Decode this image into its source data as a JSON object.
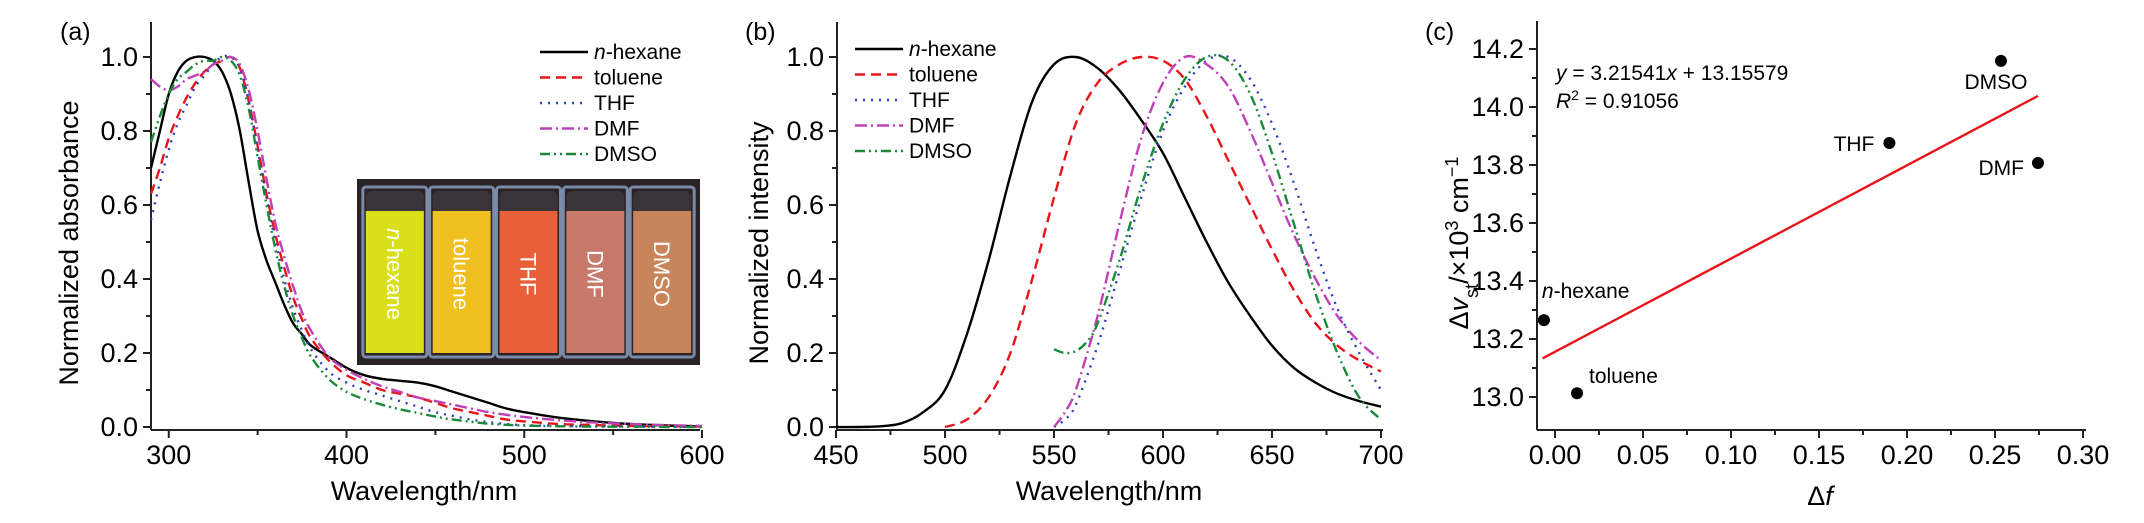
{
  "figure": {
    "series_styles": {
      "n-hexane": {
        "color": "#000000",
        "dash": "solid"
      },
      "toluene": {
        "color": "#e8141b",
        "dash": "dashed"
      },
      "THF": {
        "color": "#2a3fbf",
        "dash": "dotted"
      },
      "DMF": {
        "color": "#c040b8",
        "dash": "dash-dot"
      },
      "DMSO": {
        "color": "#1a8a3a",
        "dash": "dash-dot-dot"
      }
    }
  },
  "chart_data": [
    {
      "panel": "(a)",
      "type": "line",
      "xlabel": "Wavelength/nm",
      "ylabel": "Normalized absorbance",
      "xlim": [
        290,
        600
      ],
      "ylim": [
        0.0,
        1.1
      ],
      "xticks": [
        300,
        400,
        500,
        600
      ],
      "xtick_labels": [
        "300",
        "400",
        "500",
        "600"
      ],
      "yticks": [
        0.0,
        0.2,
        0.4,
        0.6,
        0.8,
        1.0
      ],
      "ytick_labels": [
        "0.0",
        "0.2",
        "0.4",
        "0.6",
        "0.8",
        "1.0"
      ],
      "legend": [
        "n-hexane",
        "toluene",
        "THF",
        "DMF",
        "DMSO"
      ],
      "legend_position": "top-right",
      "inset": {
        "description": "Photo of five cuvettes under UV light",
        "labels": [
          "n-hexane",
          "toluene",
          "THF",
          "DMF",
          "DMSO"
        ],
        "colors": [
          "#d9e01a",
          "#f0c020",
          "#e8603a",
          "#c87a6a",
          "#c8845a"
        ]
      },
      "series": [
        {
          "name": "n-hexane",
          "x": [
            290,
            295,
            300,
            305,
            310,
            315,
            320,
            325,
            330,
            335,
            340,
            345,
            350,
            355,
            360,
            365,
            370,
            375,
            380,
            390,
            400,
            410,
            420,
            430,
            440,
            450,
            460,
            470,
            480,
            490,
            500,
            520,
            540,
            560,
            580,
            600
          ],
          "y": [
            0.7,
            0.8,
            0.9,
            0.96,
            0.99,
            1.0,
            1.0,
            0.99,
            0.96,
            0.9,
            0.8,
            0.66,
            0.53,
            0.45,
            0.39,
            0.33,
            0.28,
            0.25,
            0.22,
            0.19,
            0.16,
            0.14,
            0.13,
            0.125,
            0.12,
            0.11,
            0.095,
            0.08,
            0.065,
            0.05,
            0.04,
            0.025,
            0.015,
            0.008,
            0.004,
            0.002
          ]
        },
        {
          "name": "toluene",
          "x": [
            290,
            295,
            300,
            305,
            310,
            315,
            320,
            325,
            330,
            335,
            340,
            345,
            350,
            355,
            360,
            365,
            370,
            375,
            380,
            390,
            400,
            410,
            420,
            430,
            440,
            450,
            460,
            470,
            480,
            490,
            500,
            520,
            540,
            560,
            580,
            600
          ],
          "y": [
            0.63,
            0.7,
            0.78,
            0.84,
            0.89,
            0.93,
            0.96,
            0.98,
            0.99,
            1.0,
            0.97,
            0.88,
            0.76,
            0.63,
            0.52,
            0.43,
            0.35,
            0.29,
            0.24,
            0.18,
            0.14,
            0.12,
            0.1,
            0.09,
            0.08,
            0.065,
            0.05,
            0.04,
            0.03,
            0.02,
            0.015,
            0.008,
            0.005,
            0.003,
            0.002,
            0.001
          ]
        },
        {
          "name": "THF",
          "x": [
            290,
            295,
            300,
            305,
            310,
            315,
            320,
            325,
            330,
            335,
            340,
            345,
            350,
            355,
            360,
            365,
            370,
            375,
            380,
            390,
            400,
            410,
            420,
            430,
            440,
            450,
            460,
            470,
            480,
            490,
            500,
            520,
            540,
            560,
            580,
            600
          ],
          "y": [
            0.56,
            0.66,
            0.75,
            0.82,
            0.87,
            0.92,
            0.95,
            0.98,
            1.0,
            1.0,
            0.97,
            0.88,
            0.75,
            0.62,
            0.5,
            0.4,
            0.32,
            0.26,
            0.21,
            0.15,
            0.12,
            0.1,
            0.085,
            0.07,
            0.055,
            0.04,
            0.03,
            0.02,
            0.013,
            0.008,
            0.005,
            0.003,
            0.002,
            0.001,
            0.001,
            0.0
          ]
        },
        {
          "name": "DMF",
          "x": [
            290,
            295,
            300,
            305,
            310,
            315,
            320,
            325,
            330,
            335,
            340,
            345,
            350,
            355,
            360,
            365,
            370,
            375,
            380,
            390,
            400,
            410,
            420,
            430,
            440,
            450,
            460,
            470,
            480,
            490,
            500,
            520,
            540,
            560,
            580,
            600
          ],
          "y": [
            0.94,
            0.92,
            0.91,
            0.92,
            0.94,
            0.95,
            0.96,
            0.98,
            0.99,
            1.0,
            0.98,
            0.91,
            0.8,
            0.67,
            0.55,
            0.46,
            0.38,
            0.31,
            0.26,
            0.19,
            0.155,
            0.13,
            0.11,
            0.095,
            0.08,
            0.07,
            0.06,
            0.05,
            0.04,
            0.033,
            0.027,
            0.018,
            0.012,
            0.008,
            0.005,
            0.003
          ]
        },
        {
          "name": "DMSO",
          "x": [
            290,
            295,
            300,
            305,
            310,
            315,
            320,
            325,
            330,
            335,
            340,
            345,
            350,
            355,
            360,
            365,
            370,
            375,
            380,
            390,
            400,
            410,
            420,
            430,
            440,
            450,
            460,
            470,
            480,
            490,
            500,
            520,
            540,
            560,
            580,
            600
          ],
          "y": [
            0.77,
            0.84,
            0.9,
            0.94,
            0.96,
            0.98,
            0.99,
            0.99,
            1.0,
            0.99,
            0.95,
            0.86,
            0.73,
            0.6,
            0.48,
            0.38,
            0.3,
            0.24,
            0.19,
            0.13,
            0.095,
            0.075,
            0.06,
            0.048,
            0.038,
            0.028,
            0.02,
            0.014,
            0.009,
            0.006,
            0.004,
            0.002,
            0.001,
            0.001,
            0.0,
            0.0
          ]
        }
      ]
    },
    {
      "panel": "(b)",
      "type": "line",
      "xlabel": "Wavelength/nm",
      "ylabel": "Normalized intensity",
      "xlim": [
        450,
        700
      ],
      "ylim": [
        0.0,
        1.1
      ],
      "xticks": [
        450,
        500,
        550,
        600,
        650,
        700
      ],
      "xtick_labels": [
        "450",
        "500",
        "550",
        "600",
        "650",
        "700"
      ],
      "yticks": [
        0.0,
        0.2,
        0.4,
        0.6,
        0.8,
        1.0
      ],
      "ytick_labels": [
        "0.0",
        "0.2",
        "0.4",
        "0.6",
        "0.8",
        "1.0"
      ],
      "legend": [
        "n-hexane",
        "toluene",
        "THF",
        "DMF",
        "DMSO"
      ],
      "legend_position": "top-left",
      "series": [
        {
          "name": "n-hexane",
          "x": [
            450,
            460,
            470,
            480,
            490,
            500,
            510,
            520,
            530,
            540,
            550,
            560,
            570,
            580,
            590,
            600,
            610,
            620,
            630,
            640,
            650,
            660,
            670,
            680,
            690,
            700
          ],
          "y": [
            0.0,
            0.0,
            0.002,
            0.01,
            0.04,
            0.1,
            0.25,
            0.45,
            0.68,
            0.88,
            0.98,
            1.0,
            0.97,
            0.91,
            0.83,
            0.74,
            0.62,
            0.5,
            0.39,
            0.3,
            0.22,
            0.16,
            0.12,
            0.09,
            0.07,
            0.055
          ]
        },
        {
          "name": "toluene",
          "x": [
            500,
            510,
            520,
            530,
            540,
            550,
            560,
            570,
            580,
            590,
            600,
            610,
            620,
            630,
            640,
            650,
            660,
            670,
            680,
            690,
            700
          ],
          "y": [
            0.0,
            0.02,
            0.08,
            0.2,
            0.4,
            0.62,
            0.82,
            0.93,
            0.98,
            1.0,
            0.99,
            0.94,
            0.84,
            0.72,
            0.6,
            0.48,
            0.37,
            0.28,
            0.22,
            0.18,
            0.15
          ]
        },
        {
          "name": "THF",
          "x": [
            550,
            555,
            560,
            570,
            580,
            590,
            600,
            610,
            620,
            630,
            640,
            650,
            660,
            670,
            680,
            690,
            700
          ],
          "y": [
            0.0,
            0.02,
            0.06,
            0.22,
            0.42,
            0.62,
            0.8,
            0.92,
            0.99,
            1.0,
            0.94,
            0.82,
            0.66,
            0.48,
            0.32,
            0.2,
            0.1
          ]
        },
        {
          "name": "DMF",
          "x": [
            550,
            555,
            560,
            570,
            580,
            590,
            600,
            610,
            620,
            630,
            640,
            650,
            660,
            670,
            680,
            690,
            700
          ],
          "y": [
            0.0,
            0.04,
            0.1,
            0.3,
            0.55,
            0.78,
            0.93,
            1.0,
            0.98,
            0.92,
            0.8,
            0.66,
            0.52,
            0.4,
            0.3,
            0.23,
            0.18
          ]
        },
        {
          "name": "DMSO",
          "x": [
            550,
            555,
            560,
            565,
            570,
            580,
            590,
            600,
            610,
            620,
            630,
            640,
            650,
            660,
            670,
            680,
            690,
            700
          ],
          "y": [
            0.21,
            0.2,
            0.205,
            0.23,
            0.28,
            0.45,
            0.65,
            0.82,
            0.94,
            1.0,
            0.99,
            0.9,
            0.74,
            0.55,
            0.36,
            0.2,
            0.08,
            0.02
          ]
        }
      ]
    },
    {
      "panel": "(c)",
      "type": "scatter",
      "xlabel": "Δf",
      "ylabel": "Δν_st/×10^3 cm^-1",
      "xlim": [
        -0.011,
        0.3
      ],
      "ylim": [
        12.9,
        14.3
      ],
      "xticks": [
        0.0,
        0.05,
        0.1,
        0.15,
        0.2,
        0.25,
        0.3
      ],
      "xtick_labels": [
        "0.00",
        "0.05",
        "0.10",
        "0.15",
        "0.20",
        "0.25",
        "0.30"
      ],
      "yticks": [
        13.0,
        13.2,
        13.4,
        13.6,
        13.8,
        14.0,
        14.2
      ],
      "ytick_labels": [
        "13.0",
        "13.2",
        "13.4",
        "13.6",
        "13.8",
        "14.0",
        "14.2"
      ],
      "points": [
        {
          "label": "n-hexane",
          "x": -0.0063,
          "y": 13.265
        },
        {
          "label": "toluene",
          "x": 0.0125,
          "y": 13.013
        },
        {
          "label": "THF",
          "x": 0.19,
          "y": 13.876
        },
        {
          "label": "DMSO",
          "x": 0.2534,
          "y": 14.159
        },
        {
          "label": "DMF",
          "x": 0.2744,
          "y": 13.807
        }
      ],
      "fit": {
        "slope": 3.21541,
        "intercept": 13.15579,
        "x_range": [
          -0.007,
          0.2744
        ],
        "color": "#e8141b"
      },
      "equation": {
        "y_var": "y",
        "eq_body": " = 3.21541",
        "x_var": "x",
        "eq_tail": " + 13.15579",
        "r_var": "R",
        "r_sup": "2",
        "r_tail": " = 0.91056"
      }
    }
  ]
}
